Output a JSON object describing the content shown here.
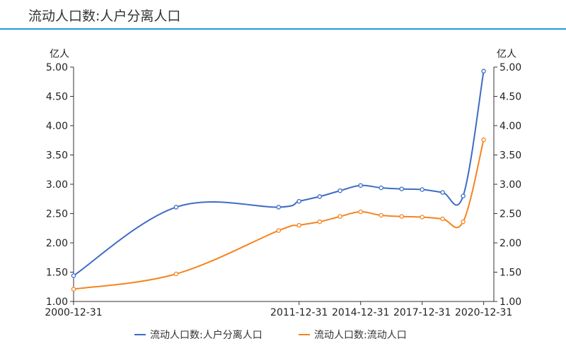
{
  "header": {
    "title": "流动人口数:人户分离人口"
  },
  "chart_data": {
    "type": "line",
    "x": [
      "2000-12-31",
      "2005-12-31",
      "2010-12-31",
      "2011-12-31",
      "2012-12-31",
      "2013-12-31",
      "2014-12-31",
      "2015-12-31",
      "2016-12-31",
      "2017-12-31",
      "2018-12-31",
      "2019-12-31",
      "2020-12-31"
    ],
    "x_tick_labels": [
      "2000-12-31",
      "2011-12-31",
      "2014-12-31",
      "2017-12-31",
      "2020-12-31"
    ],
    "series": [
      {
        "name": "流动人口数:人户分离人口",
        "color": "#3d6cc4",
        "values": [
          1.44,
          2.61,
          2.61,
          2.71,
          2.79,
          2.89,
          2.98,
          2.94,
          2.92,
          2.91,
          2.86,
          2.8,
          4.93
        ]
      },
      {
        "name": "流动人口数:流动人口",
        "color": "#f5841f",
        "values": [
          1.21,
          1.47,
          2.21,
          2.3,
          2.36,
          2.45,
          2.53,
          2.47,
          2.45,
          2.44,
          2.41,
          2.36,
          3.76
        ]
      }
    ],
    "y_left": {
      "unit": "亿人",
      "ylim": [
        1.0,
        5.0
      ],
      "ticks": [
        "1.00",
        "1.50",
        "2.00",
        "2.50",
        "3.00",
        "3.50",
        "4.00",
        "4.50",
        "5.00"
      ]
    },
    "y_right": {
      "unit": "亿人",
      "ylim": [
        1.0,
        5.0
      ],
      "ticks": [
        "1.00",
        "1.50",
        "2.00",
        "2.50",
        "3.00",
        "3.50",
        "4.00",
        "4.50",
        "5.00"
      ]
    },
    "grid": false,
    "legend_position": "bottom-center"
  }
}
